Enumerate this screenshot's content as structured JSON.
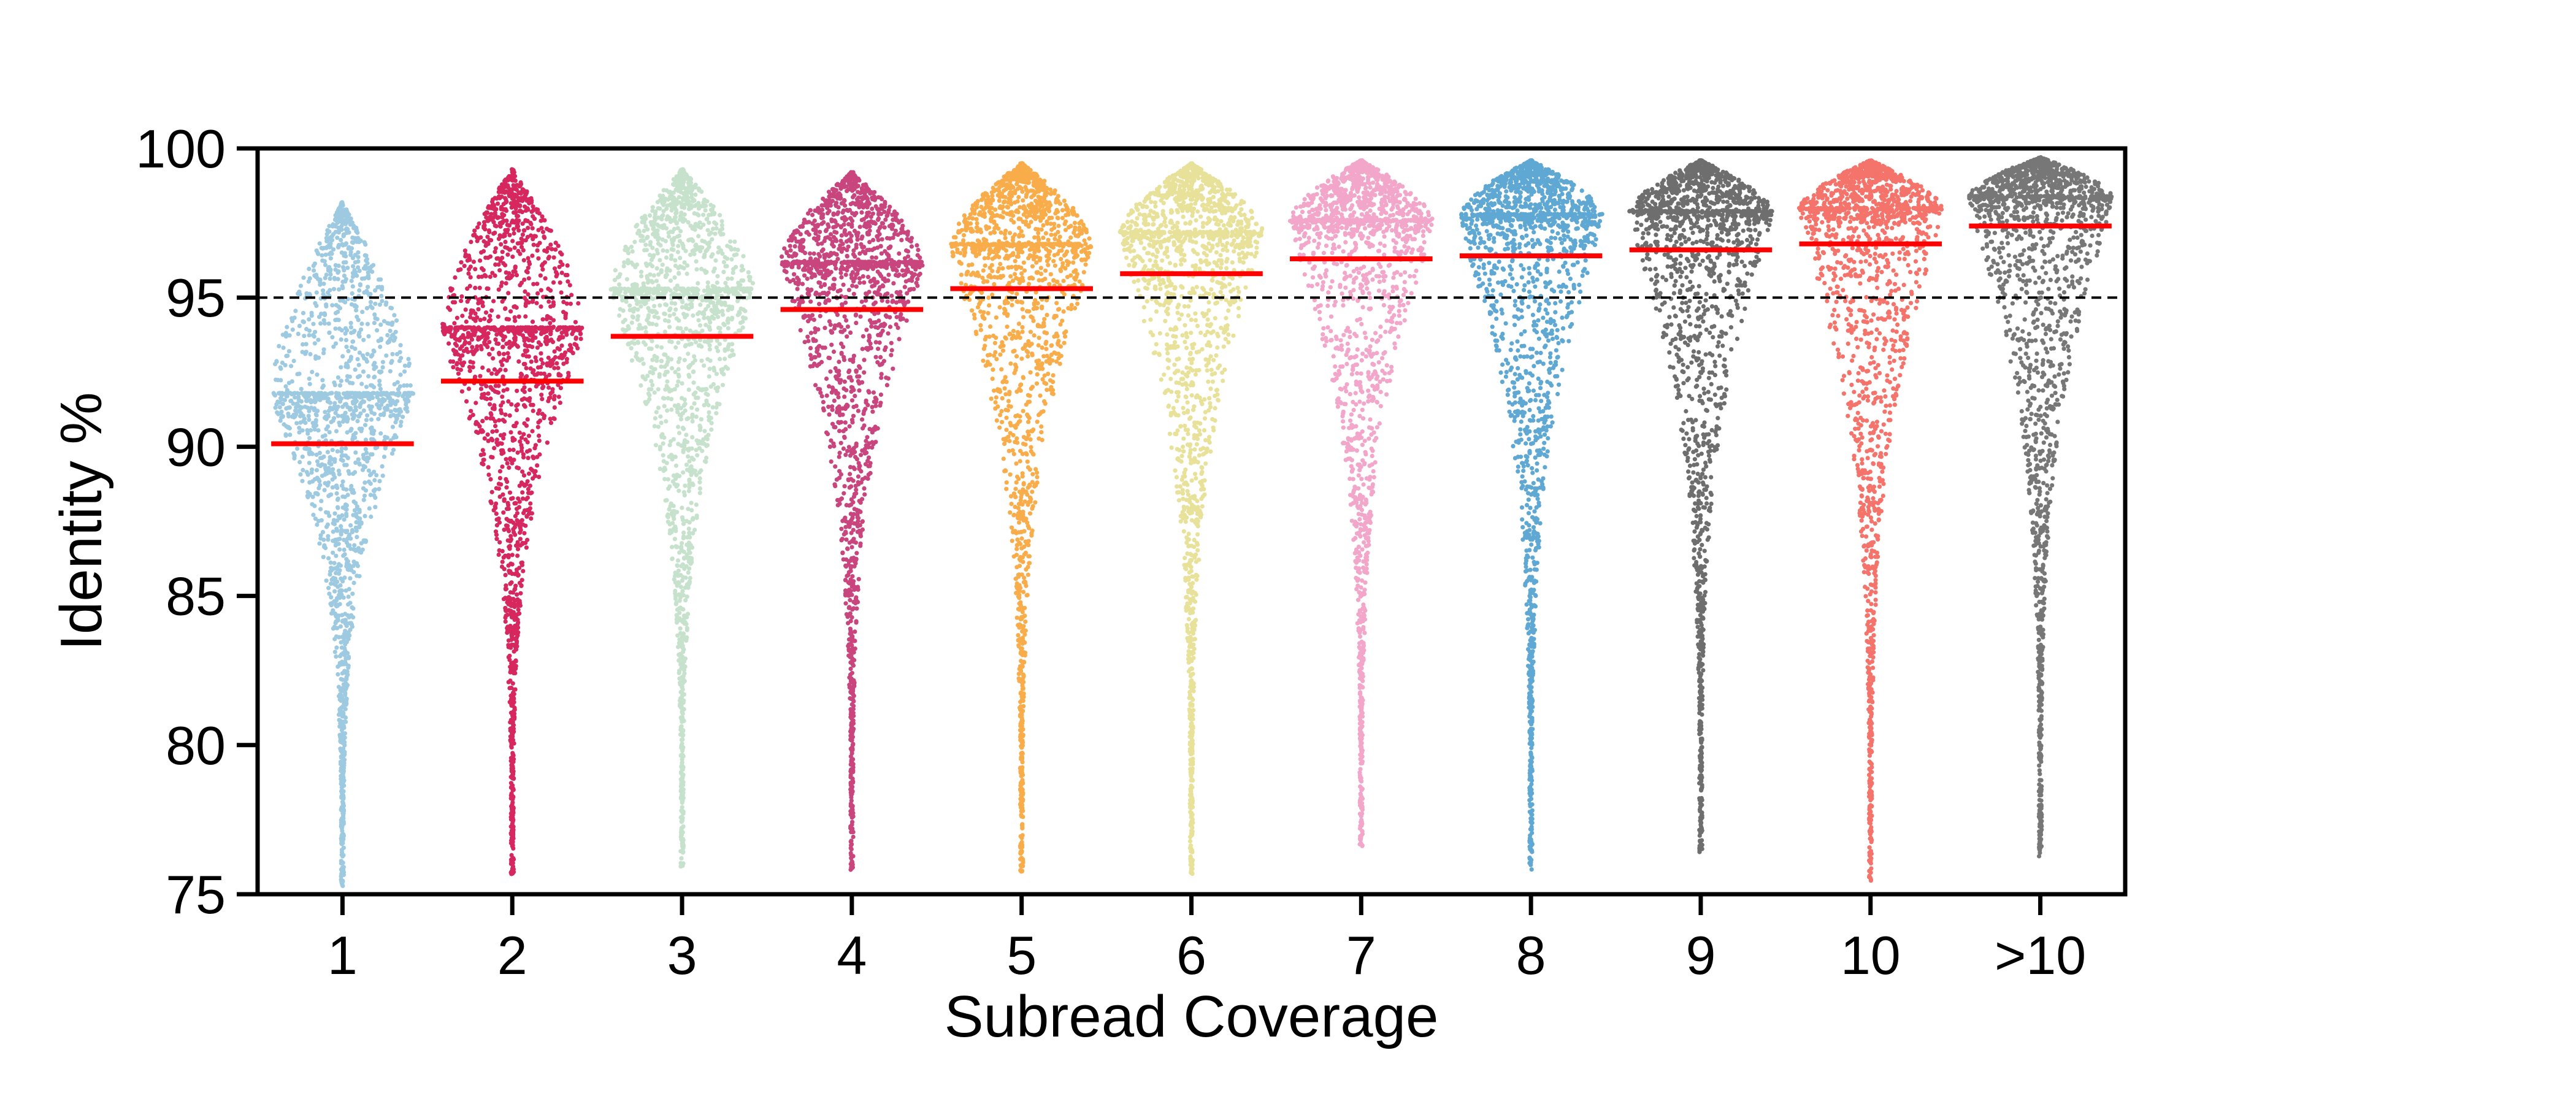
{
  "chart_data": {
    "type": "scatter",
    "subtype": "beeswarm",
    "xlabel": "Subread Coverage",
    "ylabel": "Identity %",
    "categories": [
      "1",
      "2",
      "3",
      "4",
      "5",
      "6",
      "7",
      "8",
      "9",
      "10",
      ">10"
    ],
    "ylim": [
      75,
      100
    ],
    "yticks": [
      75,
      80,
      85,
      90,
      95,
      100
    ],
    "reference_line": {
      "y": 95,
      "style": "dashed",
      "color": "#000000"
    },
    "median_line_color": "#ff0000",
    "series": [
      {
        "category": "1",
        "median": 90.1,
        "min": 75.2,
        "max": 98.2,
        "mode": 91.8,
        "color": "#9ecae1"
      },
      {
        "category": "2",
        "median": 92.2,
        "min": 75.6,
        "max": 99.3,
        "mode": 94.0,
        "color": "#d6275f"
      },
      {
        "category": "3",
        "median": 93.7,
        "min": 75.9,
        "max": 99.3,
        "mode": 95.3,
        "color": "#c7e2cc"
      },
      {
        "category": "4",
        "median": 94.6,
        "min": 75.8,
        "max": 99.2,
        "mode": 96.2,
        "color": "#c9457d"
      },
      {
        "category": "5",
        "median": 95.3,
        "min": 75.7,
        "max": 99.5,
        "mode": 96.8,
        "color": "#f9ad4a"
      },
      {
        "category": "6",
        "median": 95.8,
        "min": 75.6,
        "max": 99.5,
        "mode": 97.2,
        "color": "#e8e199"
      },
      {
        "category": "7",
        "median": 96.3,
        "min": 76.6,
        "max": 99.6,
        "mode": 97.6,
        "color": "#f2a6c9"
      },
      {
        "category": "8",
        "median": 96.4,
        "min": 75.8,
        "max": 99.6,
        "mode": 97.8,
        "color": "#5fa8d3"
      },
      {
        "category": "9",
        "median": 96.6,
        "min": 76.4,
        "max": 99.6,
        "mode": 97.9,
        "color": "#6e6e6e"
      },
      {
        "category": "10",
        "median": 96.8,
        "min": 75.4,
        "max": 99.6,
        "mode": 98.0,
        "color": "#f4736b"
      },
      {
        "category": ">10",
        "median": 97.4,
        "min": 76.2,
        "max": 99.7,
        "mode": 98.4,
        "color": "#777777"
      }
    ]
  }
}
